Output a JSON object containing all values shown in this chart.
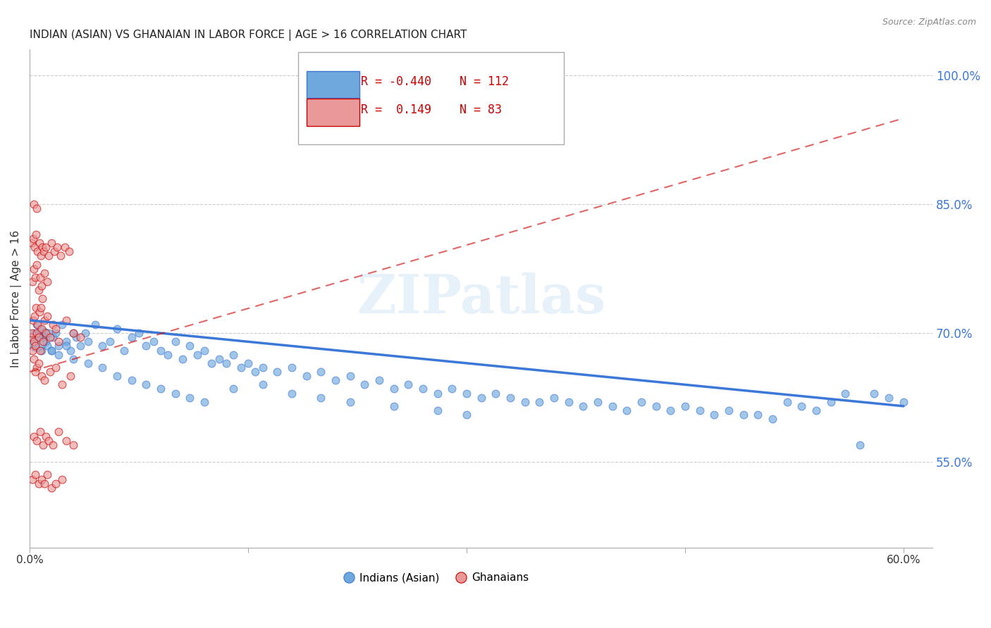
{
  "title": "INDIAN (ASIAN) VS GHANAIAN IN LABOR FORCE | AGE > 16 CORRELATION CHART",
  "source": "Source: ZipAtlas.com",
  "ylabel": "In Labor Force | Age > 16",
  "yticks_right": [
    55.0,
    70.0,
    85.0,
    100.0
  ],
  "ytick_labels_right": [
    "55.0%",
    "70.0%",
    "85.0%",
    "100.0%"
  ],
  "legend_blue_r": "-0.440",
  "legend_blue_n": "112",
  "legend_pink_r": "0.149",
  "legend_pink_n": "83",
  "legend_label_blue": "Indians (Asian)",
  "legend_label_pink": "Ghanaians",
  "blue_color": "#6fa8dc",
  "pink_color": "#ea9999",
  "blue_line_color": "#3c78d8",
  "pink_line_color": "#cc0000",
  "watermark": "ZIPatlas",
  "xlim": [
    0.0,
    62.0
  ],
  "ylim": [
    45.0,
    103.0
  ],
  "blue_scatter_x": [
    0.3,
    0.4,
    0.5,
    0.6,
    0.7,
    0.8,
    0.9,
    1.0,
    1.1,
    1.2,
    1.3,
    1.5,
    1.6,
    1.8,
    2.0,
    2.2,
    2.5,
    2.8,
    3.0,
    3.2,
    3.5,
    3.8,
    4.0,
    4.5,
    5.0,
    5.5,
    6.0,
    6.5,
    7.0,
    7.5,
    8.0,
    8.5,
    9.0,
    9.5,
    10.0,
    10.5,
    11.0,
    11.5,
    12.0,
    12.5,
    13.0,
    13.5,
    14.0,
    14.5,
    15.0,
    15.5,
    16.0,
    17.0,
    18.0,
    19.0,
    20.0,
    21.0,
    22.0,
    23.0,
    24.0,
    25.0,
    26.0,
    27.0,
    28.0,
    29.0,
    30.0,
    31.0,
    32.0,
    33.0,
    34.0,
    35.0,
    36.0,
    37.0,
    38.0,
    39.0,
    40.0,
    41.0,
    42.0,
    43.0,
    44.0,
    45.0,
    46.0,
    47.0,
    48.0,
    49.0,
    50.0,
    51.0,
    52.0,
    53.0,
    54.0,
    55.0,
    56.0,
    57.0,
    58.0,
    59.0,
    60.0,
    1.0,
    1.5,
    2.0,
    2.5,
    3.0,
    4.0,
    5.0,
    6.0,
    7.0,
    8.0,
    9.0,
    10.0,
    11.0,
    12.0,
    14.0,
    16.0,
    18.0,
    20.0,
    22.0,
    25.0,
    28.0,
    30.0
  ],
  "blue_scatter_y": [
    70.0,
    68.5,
    71.0,
    69.5,
    70.5,
    68.0,
    69.8,
    70.2,
    69.0,
    68.5,
    70.0,
    68.0,
    69.5,
    70.0,
    68.5,
    71.0,
    69.0,
    68.0,
    70.0,
    69.5,
    68.5,
    70.0,
    69.0,
    71.0,
    68.5,
    69.0,
    70.5,
    68.0,
    69.5,
    70.0,
    68.5,
    69.0,
    68.0,
    67.5,
    69.0,
    67.0,
    68.5,
    67.5,
    68.0,
    66.5,
    67.0,
    66.5,
    67.5,
    66.0,
    66.5,
    65.5,
    66.0,
    65.5,
    66.0,
    65.0,
    65.5,
    64.5,
    65.0,
    64.0,
    64.5,
    63.5,
    64.0,
    63.5,
    63.0,
    63.5,
    63.0,
    62.5,
    63.0,
    62.5,
    62.0,
    62.0,
    62.5,
    62.0,
    61.5,
    62.0,
    61.5,
    61.0,
    62.0,
    61.5,
    61.0,
    61.5,
    61.0,
    60.5,
    61.0,
    60.5,
    60.5,
    60.0,
    62.0,
    61.5,
    61.0,
    62.0,
    63.0,
    57.0,
    63.0,
    62.5,
    62.0,
    69.5,
    68.0,
    67.5,
    68.5,
    67.0,
    66.5,
    66.0,
    65.0,
    64.5,
    64.0,
    63.5,
    63.0,
    62.5,
    62.0,
    63.5,
    64.0,
    63.0,
    62.5,
    62.0,
    61.5,
    61.0,
    60.5
  ],
  "blue_scatter_size": 60,
  "blue_large_x": [
    0.5
  ],
  "blue_large_y": [
    69.0
  ],
  "blue_large_size": 400,
  "pink_scatter_x": [
    0.1,
    0.15,
    0.2,
    0.25,
    0.3,
    0.35,
    0.4,
    0.45,
    0.5,
    0.55,
    0.6,
    0.65,
    0.7,
    0.75,
    0.8,
    0.85,
    0.9,
    1.0,
    1.1,
    1.2,
    1.4,
    1.6,
    1.8,
    2.0,
    2.5,
    3.0,
    3.5,
    0.2,
    0.3,
    0.4,
    0.5,
    0.6,
    0.7,
    0.8,
    1.0,
    1.2,
    0.5,
    0.3,
    0.4,
    0.6,
    0.8,
    1.0,
    1.4,
    1.8,
    2.2,
    2.8,
    0.15,
    0.25,
    0.35,
    0.45,
    0.55,
    0.65,
    0.75,
    0.85,
    0.95,
    1.1,
    1.3,
    1.5,
    1.7,
    1.9,
    2.1,
    2.4,
    2.7,
    0.3,
    0.5,
    0.7,
    0.9,
    1.1,
    1.3,
    1.6,
    2.0,
    2.5,
    3.0,
    0.2,
    0.4,
    0.6,
    0.8,
    1.0,
    1.2,
    1.5,
    1.8,
    2.2,
    0.3,
    0.5
  ],
  "pink_scatter_y": [
    69.5,
    70.0,
    68.0,
    71.5,
    69.0,
    72.0,
    68.5,
    73.0,
    70.0,
    71.0,
    69.5,
    72.5,
    68.0,
    73.0,
    70.5,
    74.0,
    69.0,
    71.5,
    70.0,
    72.0,
    69.5,
    71.0,
    70.5,
    69.0,
    71.5,
    70.0,
    69.5,
    76.0,
    77.5,
    76.5,
    78.0,
    75.0,
    76.5,
    75.5,
    77.0,
    76.0,
    66.0,
    67.0,
    65.5,
    66.5,
    65.0,
    64.5,
    65.5,
    66.0,
    64.0,
    65.0,
    80.5,
    81.0,
    80.0,
    81.5,
    79.5,
    80.5,
    79.0,
    80.0,
    79.5,
    80.0,
    79.0,
    80.5,
    79.5,
    80.0,
    79.0,
    80.0,
    79.5,
    58.0,
    57.5,
    58.5,
    57.0,
    58.0,
    57.5,
    57.0,
    58.5,
    57.5,
    57.0,
    53.0,
    53.5,
    52.5,
    53.0,
    52.5,
    53.5,
    52.0,
    52.5,
    53.0,
    85.0,
    84.5
  ],
  "pink_scatter_size": 60,
  "blue_trend_x": [
    0.0,
    60.0
  ],
  "blue_trend_y": [
    71.5,
    61.5
  ],
  "pink_trend_x": [
    0.0,
    60.0
  ],
  "pink_trend_y": [
    65.5,
    95.0
  ]
}
